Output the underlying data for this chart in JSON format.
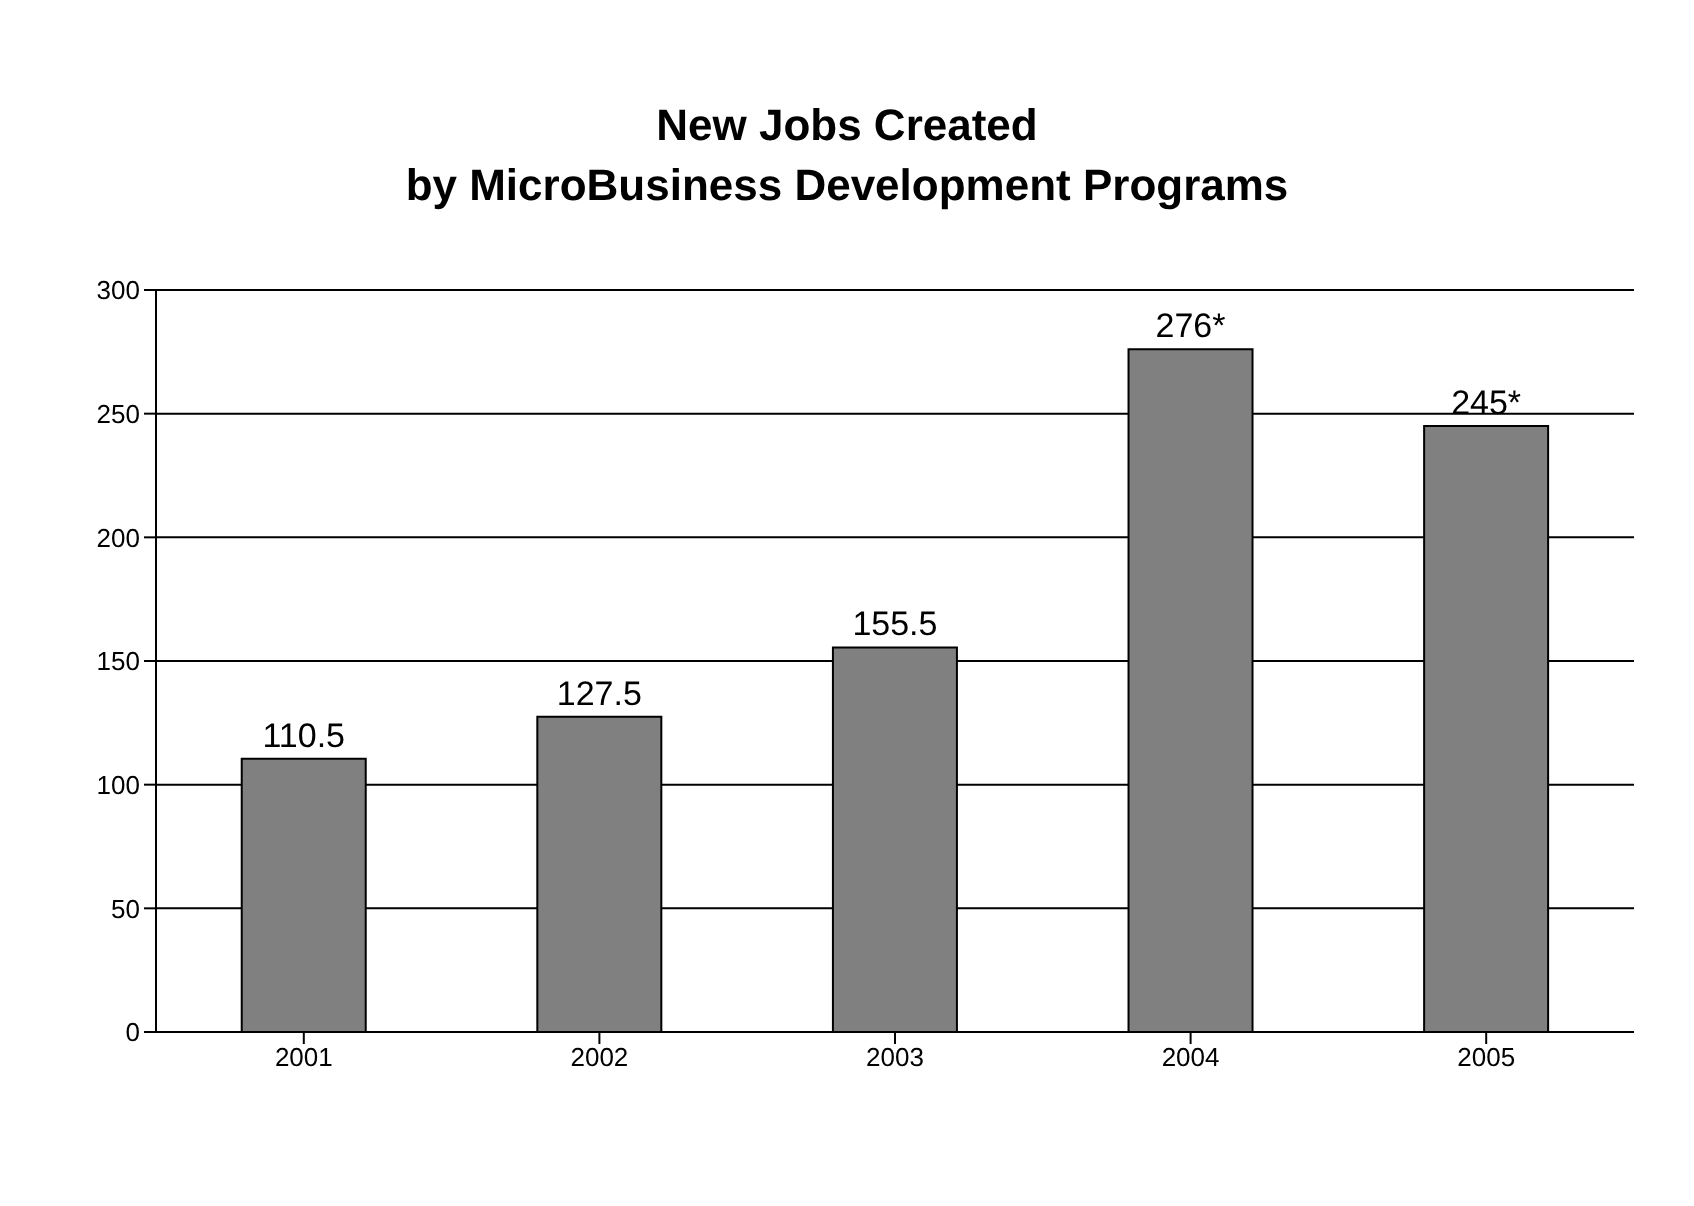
{
  "chart_data": {
    "type": "bar",
    "title": "New Jobs Created\nby MicroBusiness Development Programs",
    "categories": [
      "2001",
      "2002",
      "2003",
      "2004",
      "2005"
    ],
    "series": [
      {
        "color": "#808080",
        "values": [
          110.5,
          127.5,
          155.5,
          276,
          245
        ],
        "value_labels": [
          "110.5",
          "127.5",
          "155.5",
          "276*",
          "245*"
        ]
      }
    ],
    "ylim": [
      0,
      300
    ],
    "yticks": [
      0,
      50,
      100,
      150,
      200,
      250,
      300
    ],
    "grid": "y"
  }
}
